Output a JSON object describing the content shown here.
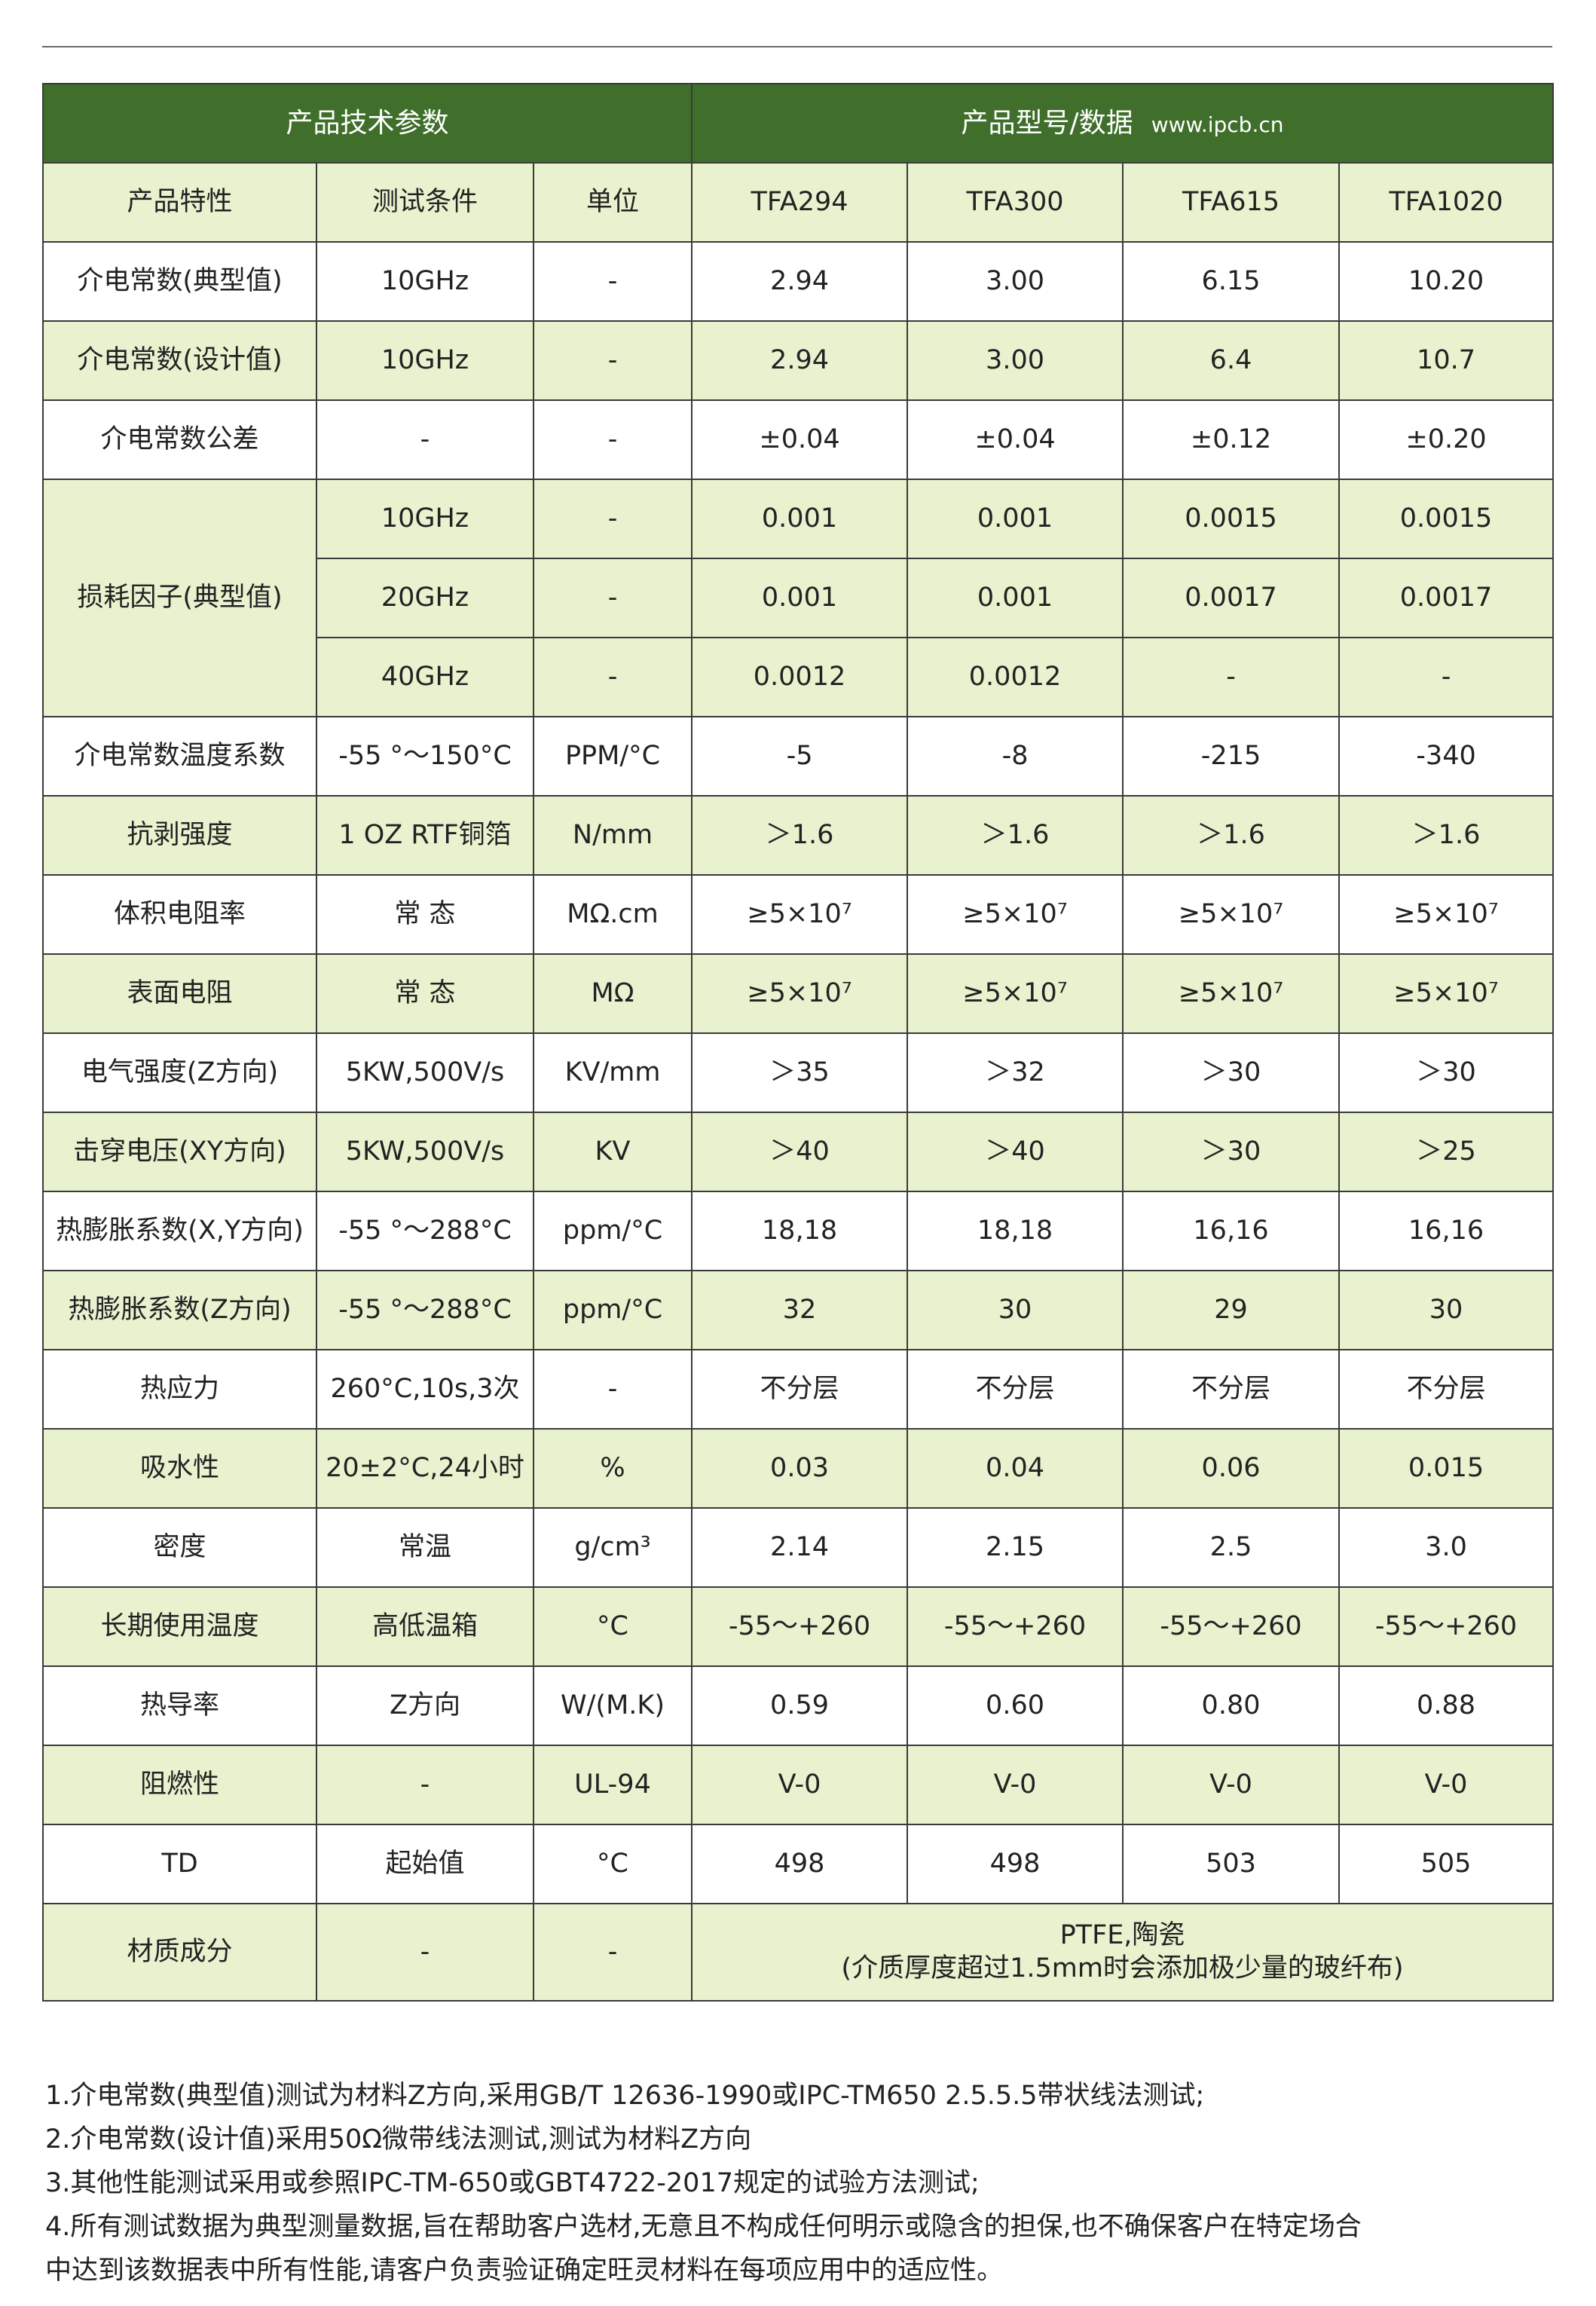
{
  "header": {
    "left": "产品技术参数",
    "right": "产品型号/数据",
    "url": "www.ipcb.cn"
  },
  "columns": [
    "产品特性",
    "测试条件",
    "单位",
    "TFA294",
    "TFA300",
    "TFA615",
    "TFA1020"
  ],
  "rows": [
    {
      "name": "介电常数(典型值)",
      "cond": "10GHz",
      "unit": "-",
      "values": [
        "2.94",
        "3.00",
        "6.15",
        "10.20"
      ],
      "shade": "w"
    },
    {
      "name": "介电常数(设计值)",
      "cond": "10GHz",
      "unit": "-",
      "values": [
        "2.94",
        "3.00",
        "6.4",
        "10.7"
      ],
      "shade": "g"
    },
    {
      "name": "介电常数公差",
      "cond": "-",
      "unit": "-",
      "values": [
        "±0.04",
        "±0.04",
        "±0.12",
        "±0.20"
      ],
      "shade": "w"
    },
    {
      "name": "损耗因子(典型值)",
      "span": 3,
      "cond": "10GHz",
      "unit": "-",
      "values": [
        "0.001",
        "0.001",
        "0.0015",
        "0.0015"
      ],
      "shade": "g"
    },
    {
      "cond": "20GHz",
      "unit": "-",
      "values": [
        "0.001",
        "0.001",
        "0.0017",
        "0.0017"
      ],
      "shade": "g"
    },
    {
      "cond": "40GHz",
      "unit": "-",
      "values": [
        "0.0012",
        "0.0012",
        "-",
        "-"
      ],
      "shade": "g"
    },
    {
      "name": "介电常数温度系数",
      "cond": "-55 °～150°C",
      "unit": "PPM/°C",
      "values": [
        "-5",
        "-8",
        "-215",
        "-340"
      ],
      "shade": "w"
    },
    {
      "name": "抗剥强度",
      "cond": "1 OZ  RTF铜箔",
      "unit": "N/mm",
      "values": [
        "＞1.6",
        "＞1.6",
        "＞1.6",
        "＞1.6"
      ],
      "shade": "g"
    },
    {
      "name": "体积电阻率",
      "cond": "常  态",
      "unit": "MΩ.cm",
      "values": [
        "≥5×10⁷",
        "≥5×10⁷",
        "≥5×10⁷",
        "≥5×10⁷"
      ],
      "shade": "w"
    },
    {
      "name": "表面电阻",
      "cond": "常  态",
      "unit": "MΩ",
      "values": [
        "≥5×10⁷",
        "≥5×10⁷",
        "≥5×10⁷",
        "≥5×10⁷"
      ],
      "shade": "g"
    },
    {
      "name": "电气强度(Z方向)",
      "cond": "5KW,500V/s",
      "unit": "KV/mm",
      "values": [
        "＞35",
        "＞32",
        "＞30",
        "＞30"
      ],
      "shade": "w"
    },
    {
      "name": "击穿电压(XY方向)",
      "cond": "5KW,500V/s",
      "unit": "KV",
      "values": [
        "＞40",
        "＞40",
        "＞30",
        "＞25"
      ],
      "shade": "g"
    },
    {
      "name": "热膨胀系数(X,Y方向)",
      "cond": "-55 °～288°C",
      "unit": "ppm/°C",
      "values": [
        "18,18",
        "18,18",
        "16,16",
        "16,16"
      ],
      "shade": "w"
    },
    {
      "name": "热膨胀系数(Z方向)",
      "cond": "-55 °～288°C",
      "unit": "ppm/°C",
      "values": [
        "32",
        "30",
        "29",
        "30"
      ],
      "shade": "g"
    },
    {
      "name": "热应力",
      "cond": "260°C,10s,3次",
      "unit": "-",
      "values": [
        "不分层",
        "不分层",
        "不分层",
        "不分层"
      ],
      "shade": "w"
    },
    {
      "name": "吸水性",
      "cond": "20±2°C,24小时",
      "unit": "%",
      "values": [
        "0.03",
        "0.04",
        "0.06",
        "0.015"
      ],
      "shade": "g"
    },
    {
      "name": "密度",
      "cond": "常温",
      "unit": "g/cm³",
      "values": [
        "2.14",
        "2.15",
        "2.5",
        "3.0"
      ],
      "shade": "w"
    },
    {
      "name": "长期使用温度",
      "cond": "高低温箱",
      "unit": "°C",
      "values": [
        "-55～+260",
        "-55～+260",
        "-55～+260",
        "-55～+260"
      ],
      "shade": "g"
    },
    {
      "name": "热导率",
      "cond": "Z方向",
      "unit": "W/(M.K)",
      "values": [
        "0.59",
        "0.60",
        "0.80",
        "0.88"
      ],
      "shade": "w"
    },
    {
      "name": "阻燃性",
      "cond": "-",
      "unit": "UL-94",
      "values": [
        "V-0",
        "V-0",
        "V-0",
        "V-0"
      ],
      "shade": "g"
    },
    {
      "name": "TD",
      "cond": "起始值",
      "unit": "°C",
      "values": [
        "498",
        "498",
        "503",
        "505"
      ],
      "shade": "w"
    }
  ],
  "material": {
    "name": "材质成分",
    "cond": "-",
    "unit": "-",
    "line1": "PTFE,陶瓷",
    "line2": "(介质厚度超过1.5mm时会添加极少量的玻纤布)"
  },
  "notes": [
    "1.介电常数(典型值)测试为材料Z方向,采用GB/T 12636-1990或IPC-TM650 2.5.5.5带状线法测试;",
    "2.介电常数(设计值)采用50Ω微带线法测试,测试为材料Z方向",
    "3.其他性能测试采用或参照IPC-TM-650或GBT4722-2017规定的试验方法测试;",
    "4.所有测试数据为典型测量数据,旨在帮助客户选材,无意且不构成任何明示或隐含的担保,也不确保客户在特定场合",
    "中达到该数据表中所有性能,请客户负责验证确定旺灵材料在每项应用中的适应性。"
  ],
  "colors": {
    "header_green": "#3f6f2b",
    "row_green": "#e9f2cf"
  }
}
